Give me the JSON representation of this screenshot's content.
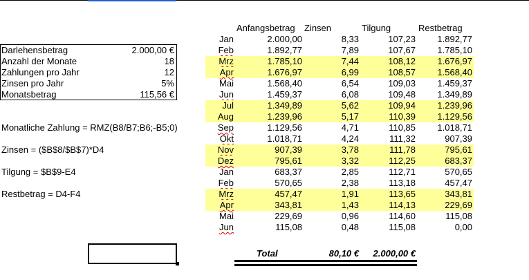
{
  "headers": [
    "Anfangsbetrag",
    "Zinsen",
    "Tilgung",
    "Restbetrag"
  ],
  "params": [
    {
      "label": "Darlehensbetrag",
      "value": "2.000,00 €"
    },
    {
      "label": "Anzahl der Monate",
      "value": "18"
    },
    {
      "label": "Zahlungen pro Jahr",
      "value": "12"
    },
    {
      "label": "Zinsen pro Jahr",
      "value": "5%"
    },
    {
      "label": "Monatsbetrag",
      "value": "115,56 €"
    }
  ],
  "formulas": [
    "Monatliche Zahlung = RMZ(B8/B7;B6;-B5;0)",
    "Zinsen = ($B$8/$B$7)*D4",
    "Tilgung = $B$9-E4",
    "Restbetrag = D4-F4"
  ],
  "highlight_color": "#ffff99",
  "rows": [
    {
      "m": "Jan",
      "a": "2.000,00",
      "z": "8,33",
      "t": "107,23",
      "r": "1.892,77",
      "hl": false,
      "sp": false
    },
    {
      "m": "Feb",
      "a": "1.892,77",
      "z": "7,89",
      "t": "107,67",
      "r": "1.785,10",
      "hl": false,
      "sp": true
    },
    {
      "m": "Mrz",
      "a": "1.785,10",
      "z": "7,44",
      "t": "108,12",
      "r": "1.676,97",
      "hl": true,
      "sp": true
    },
    {
      "m": "Apr",
      "a": "1.676,97",
      "z": "6,99",
      "t": "108,57",
      "r": "1.568,40",
      "hl": true,
      "sp": true
    },
    {
      "m": "Mai",
      "a": "1.568,40",
      "z": "6,54",
      "t": "109,03",
      "r": "1.459,37",
      "hl": false,
      "sp": false
    },
    {
      "m": "Jun",
      "a": "1.459,37",
      "z": "6,08",
      "t": "109,48",
      "r": "1.349,89",
      "hl": false,
      "sp": true
    },
    {
      "m": "Jul",
      "a": "1.349,89",
      "z": "5,62",
      "t": "109,94",
      "r": "1.239,96",
      "hl": true,
      "sp": false
    },
    {
      "m": "Aug",
      "a": "1.239,96",
      "z": "5,17",
      "t": "110,39",
      "r": "1.129,56",
      "hl": true,
      "sp": false
    },
    {
      "m": "Sep",
      "a": "1.129,56",
      "z": "4,71",
      "t": "110,85",
      "r": "1.018,71",
      "hl": false,
      "sp": true
    },
    {
      "m": "Okt",
      "a": "1.018,71",
      "z": "4,24",
      "t": "111,32",
      "r": "907,39",
      "hl": false,
      "sp": true
    },
    {
      "m": "Nov",
      "a": "907,39",
      "z": "3,78",
      "t": "111,78",
      "r": "795,61",
      "hl": true,
      "sp": true
    },
    {
      "m": "Dez",
      "a": "795,61",
      "z": "3,32",
      "t": "112,25",
      "r": "683,37",
      "hl": true,
      "sp": true
    },
    {
      "m": "Jan",
      "a": "683,37",
      "z": "2,85",
      "t": "112,71",
      "r": "570,65",
      "hl": false,
      "sp": false
    },
    {
      "m": "Feb",
      "a": "570,65",
      "z": "2,38",
      "t": "113,18",
      "r": "457,47",
      "hl": false,
      "sp": true
    },
    {
      "m": "Mrz",
      "a": "457,47",
      "z": "1,91",
      "t": "113,65",
      "r": "343,81",
      "hl": true,
      "sp": true
    },
    {
      "m": "Apr",
      "a": "343,81",
      "z": "1,43",
      "t": "114,13",
      "r": "229,69",
      "hl": true,
      "sp": true
    },
    {
      "m": "Mai",
      "a": "229,69",
      "z": "0,96",
      "t": "114,60",
      "r": "115,08",
      "hl": false,
      "sp": false
    },
    {
      "m": "Jun",
      "a": "115,08",
      "z": "0,48",
      "t": "115,08",
      "r": "0,00",
      "hl": false,
      "sp": true
    }
  ],
  "total": {
    "label": "Total",
    "zinsen": "80,10 €",
    "tilgung": "2.000,00 €"
  }
}
